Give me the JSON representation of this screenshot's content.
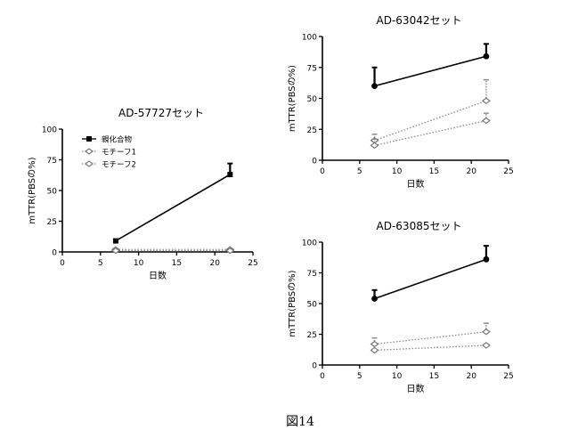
{
  "figure_caption": "図14",
  "chart_data": [
    {
      "id": "a",
      "type": "line",
      "title": "AD-57727セット",
      "xlabel": "日数",
      "ylabel": "mTTR(PBSの%)",
      "xlim": [
        0,
        25
      ],
      "ylim": [
        0,
        100
      ],
      "xticks": [
        0,
        5,
        10,
        15,
        20,
        25
      ],
      "yticks": [
        0,
        25,
        50,
        75,
        100
      ],
      "grid": false,
      "legend_position": "top-left",
      "series": [
        {
          "name": "親化合物",
          "style": "solid",
          "marker": "square",
          "x": [
            7,
            22
          ],
          "y": [
            9,
            63
          ],
          "error_up": [
            0,
            9
          ]
        },
        {
          "name": "モチーフ1",
          "style": "dotted",
          "marker": "diamond",
          "x": [
            7,
            22
          ],
          "y": [
            2,
            2
          ],
          "error_up": [
            0,
            0
          ]
        },
        {
          "name": "モチーフ2",
          "style": "dotted",
          "marker": "diamond",
          "x": [
            7,
            22
          ],
          "y": [
            1,
            1
          ],
          "error_up": [
            0,
            0
          ]
        }
      ]
    },
    {
      "id": "b",
      "type": "line",
      "title": "AD-63042セット",
      "xlabel": "日数",
      "ylabel": "mTTR(PBSの%)",
      "xlim": [
        0,
        25
      ],
      "ylim": [
        0,
        100
      ],
      "xticks": [
        0,
        5,
        10,
        15,
        20,
        25
      ],
      "yticks": [
        0,
        25,
        50,
        75,
        100
      ],
      "grid": false,
      "series": [
        {
          "style": "solid",
          "marker": "circle",
          "x": [
            7,
            22
          ],
          "y": [
            60,
            84
          ],
          "error_up": [
            15,
            10
          ]
        },
        {
          "style": "dotted",
          "marker": "diamond",
          "x": [
            7,
            22
          ],
          "y": [
            16,
            48
          ],
          "error_up": [
            5,
            17
          ]
        },
        {
          "style": "dotted",
          "marker": "diamond",
          "x": [
            7,
            22
          ],
          "y": [
            12,
            32
          ],
          "error_up": [
            5,
            6
          ]
        }
      ]
    },
    {
      "id": "c",
      "type": "line",
      "title": "AD-63085セット",
      "xlabel": "日数",
      "ylabel": "mTTR(PBSの%)",
      "xlim": [
        0,
        25
      ],
      "ylim": [
        0,
        100
      ],
      "xticks": [
        0,
        5,
        10,
        15,
        20,
        25
      ],
      "yticks": [
        0,
        25,
        50,
        75,
        100
      ],
      "grid": false,
      "series": [
        {
          "style": "solid",
          "marker": "circle",
          "x": [
            7,
            22
          ],
          "y": [
            54,
            86
          ],
          "error_up": [
            7,
            11
          ]
        },
        {
          "style": "dotted",
          "marker": "diamond",
          "x": [
            7,
            22
          ],
          "y": [
            17,
            27
          ],
          "error_up": [
            5,
            7
          ]
        },
        {
          "style": "dotted",
          "marker": "diamond",
          "x": [
            7,
            22
          ],
          "y": [
            12,
            16
          ],
          "error_up": [
            0,
            0
          ]
        }
      ]
    }
  ]
}
